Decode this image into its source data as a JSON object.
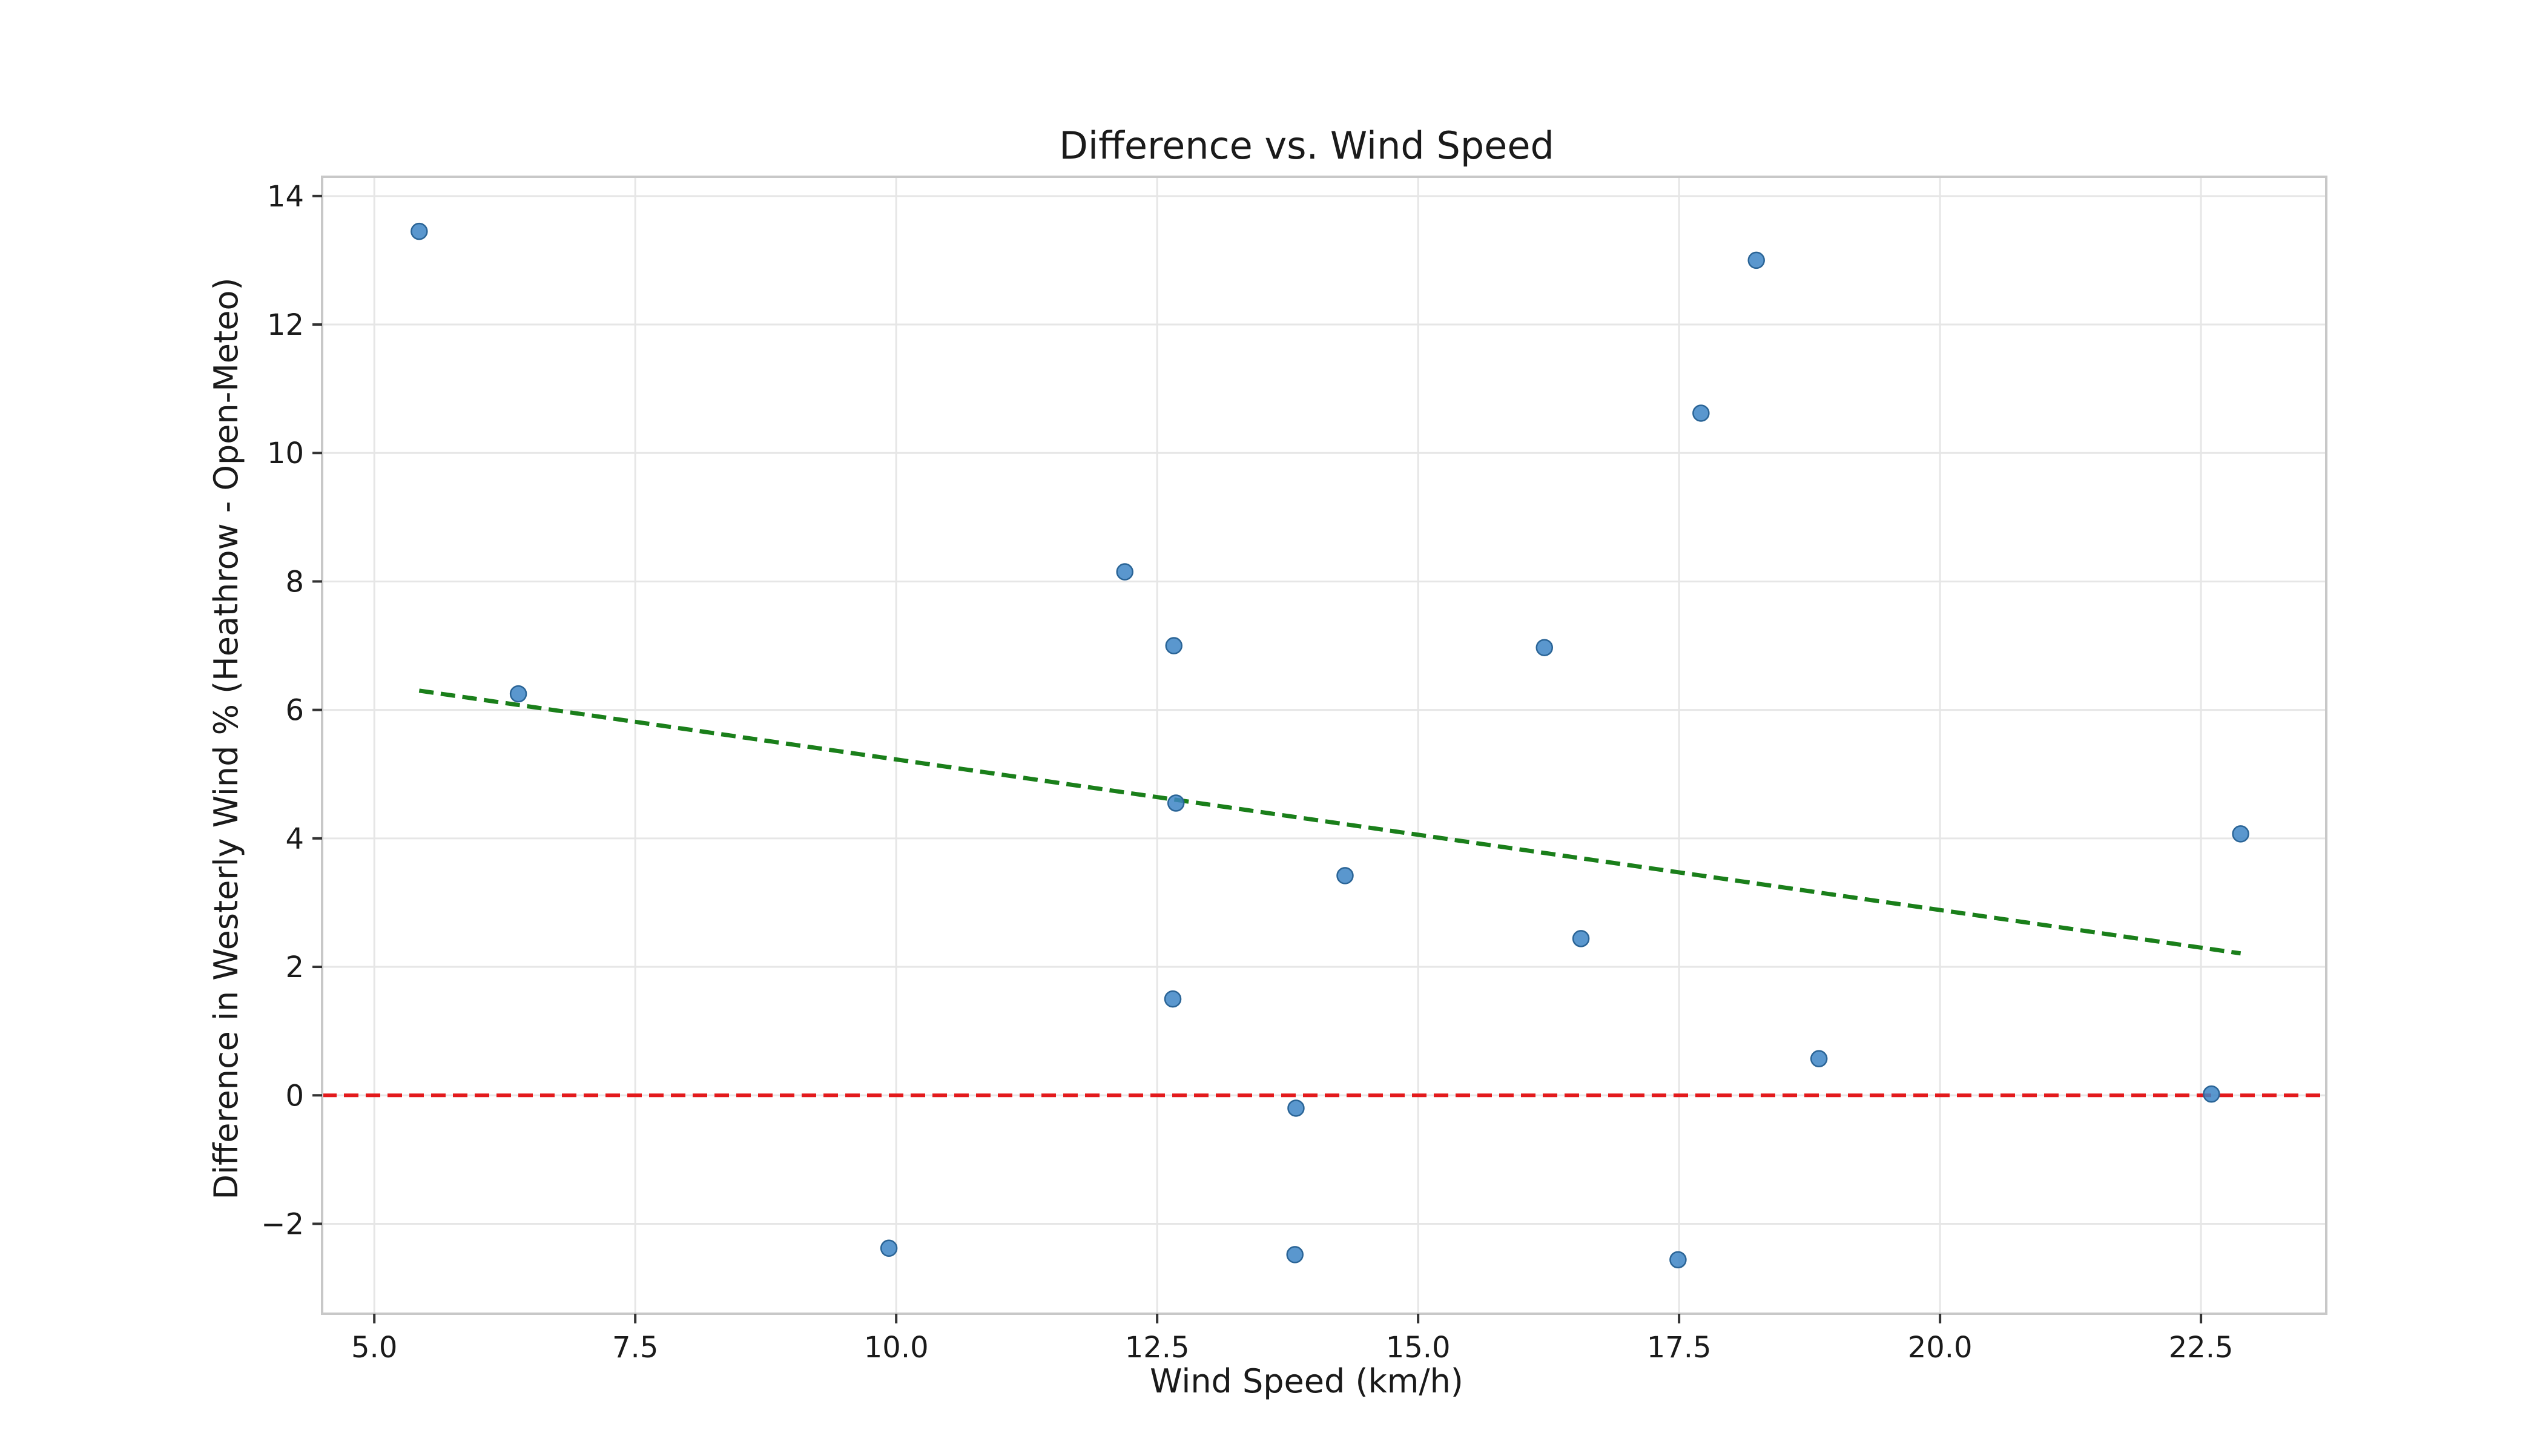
{
  "chart_data": {
    "type": "scatter",
    "title": "Difference vs. Wind Speed",
    "xlabel": "Wind Speed (km/h)",
    "ylabel": "Difference in Westerly Wind % (Heathrow - Open-Meteo)",
    "xlim": [
      4.5,
      23.7
    ],
    "ylim": [
      -3.4,
      14.3
    ],
    "xticks": [
      5.0,
      7.5,
      10.0,
      12.5,
      15.0,
      17.5,
      20.0,
      22.5
    ],
    "xtick_labels": [
      "5.0",
      "7.5",
      "10.0",
      "12.5",
      "15.0",
      "17.5",
      "20.0",
      "22.5"
    ],
    "yticks": [
      -2,
      0,
      2,
      4,
      6,
      8,
      10,
      12,
      14
    ],
    "ytick_labels": [
      "−2",
      "0",
      "2",
      "4",
      "6",
      "8",
      "10",
      "12",
      "14"
    ],
    "grid": true,
    "points": [
      {
        "x": 5.43,
        "y": 13.45
      },
      {
        "x": 6.38,
        "y": 6.25
      },
      {
        "x": 9.93,
        "y": -2.38
      },
      {
        "x": 12.19,
        "y": 8.15
      },
      {
        "x": 12.66,
        "y": 7.0
      },
      {
        "x": 12.68,
        "y": 4.55
      },
      {
        "x": 12.65,
        "y": 1.5
      },
      {
        "x": 13.83,
        "y": -0.2
      },
      {
        "x": 13.82,
        "y": -2.48
      },
      {
        "x": 14.3,
        "y": 3.42
      },
      {
        "x": 16.21,
        "y": 6.97
      },
      {
        "x": 16.56,
        "y": 2.44
      },
      {
        "x": 17.49,
        "y": -2.56
      },
      {
        "x": 17.71,
        "y": 10.62
      },
      {
        "x": 18.24,
        "y": 13.0
      },
      {
        "x": 18.84,
        "y": 0.57
      },
      {
        "x": 22.6,
        "y": 0.02
      },
      {
        "x": 22.88,
        "y": 4.07
      }
    ],
    "trend_line": {
      "x": [
        5.43,
        22.88
      ],
      "y": [
        6.3,
        2.21
      ]
    },
    "reference_line": {
      "y": 0
    },
    "colors": {
      "points": "#3d85c6",
      "trend_line": "#1a7f1a",
      "reference_line": "#e31a1c",
      "grid": "#e6e6e6",
      "frame": "#c8c8c8"
    }
  }
}
